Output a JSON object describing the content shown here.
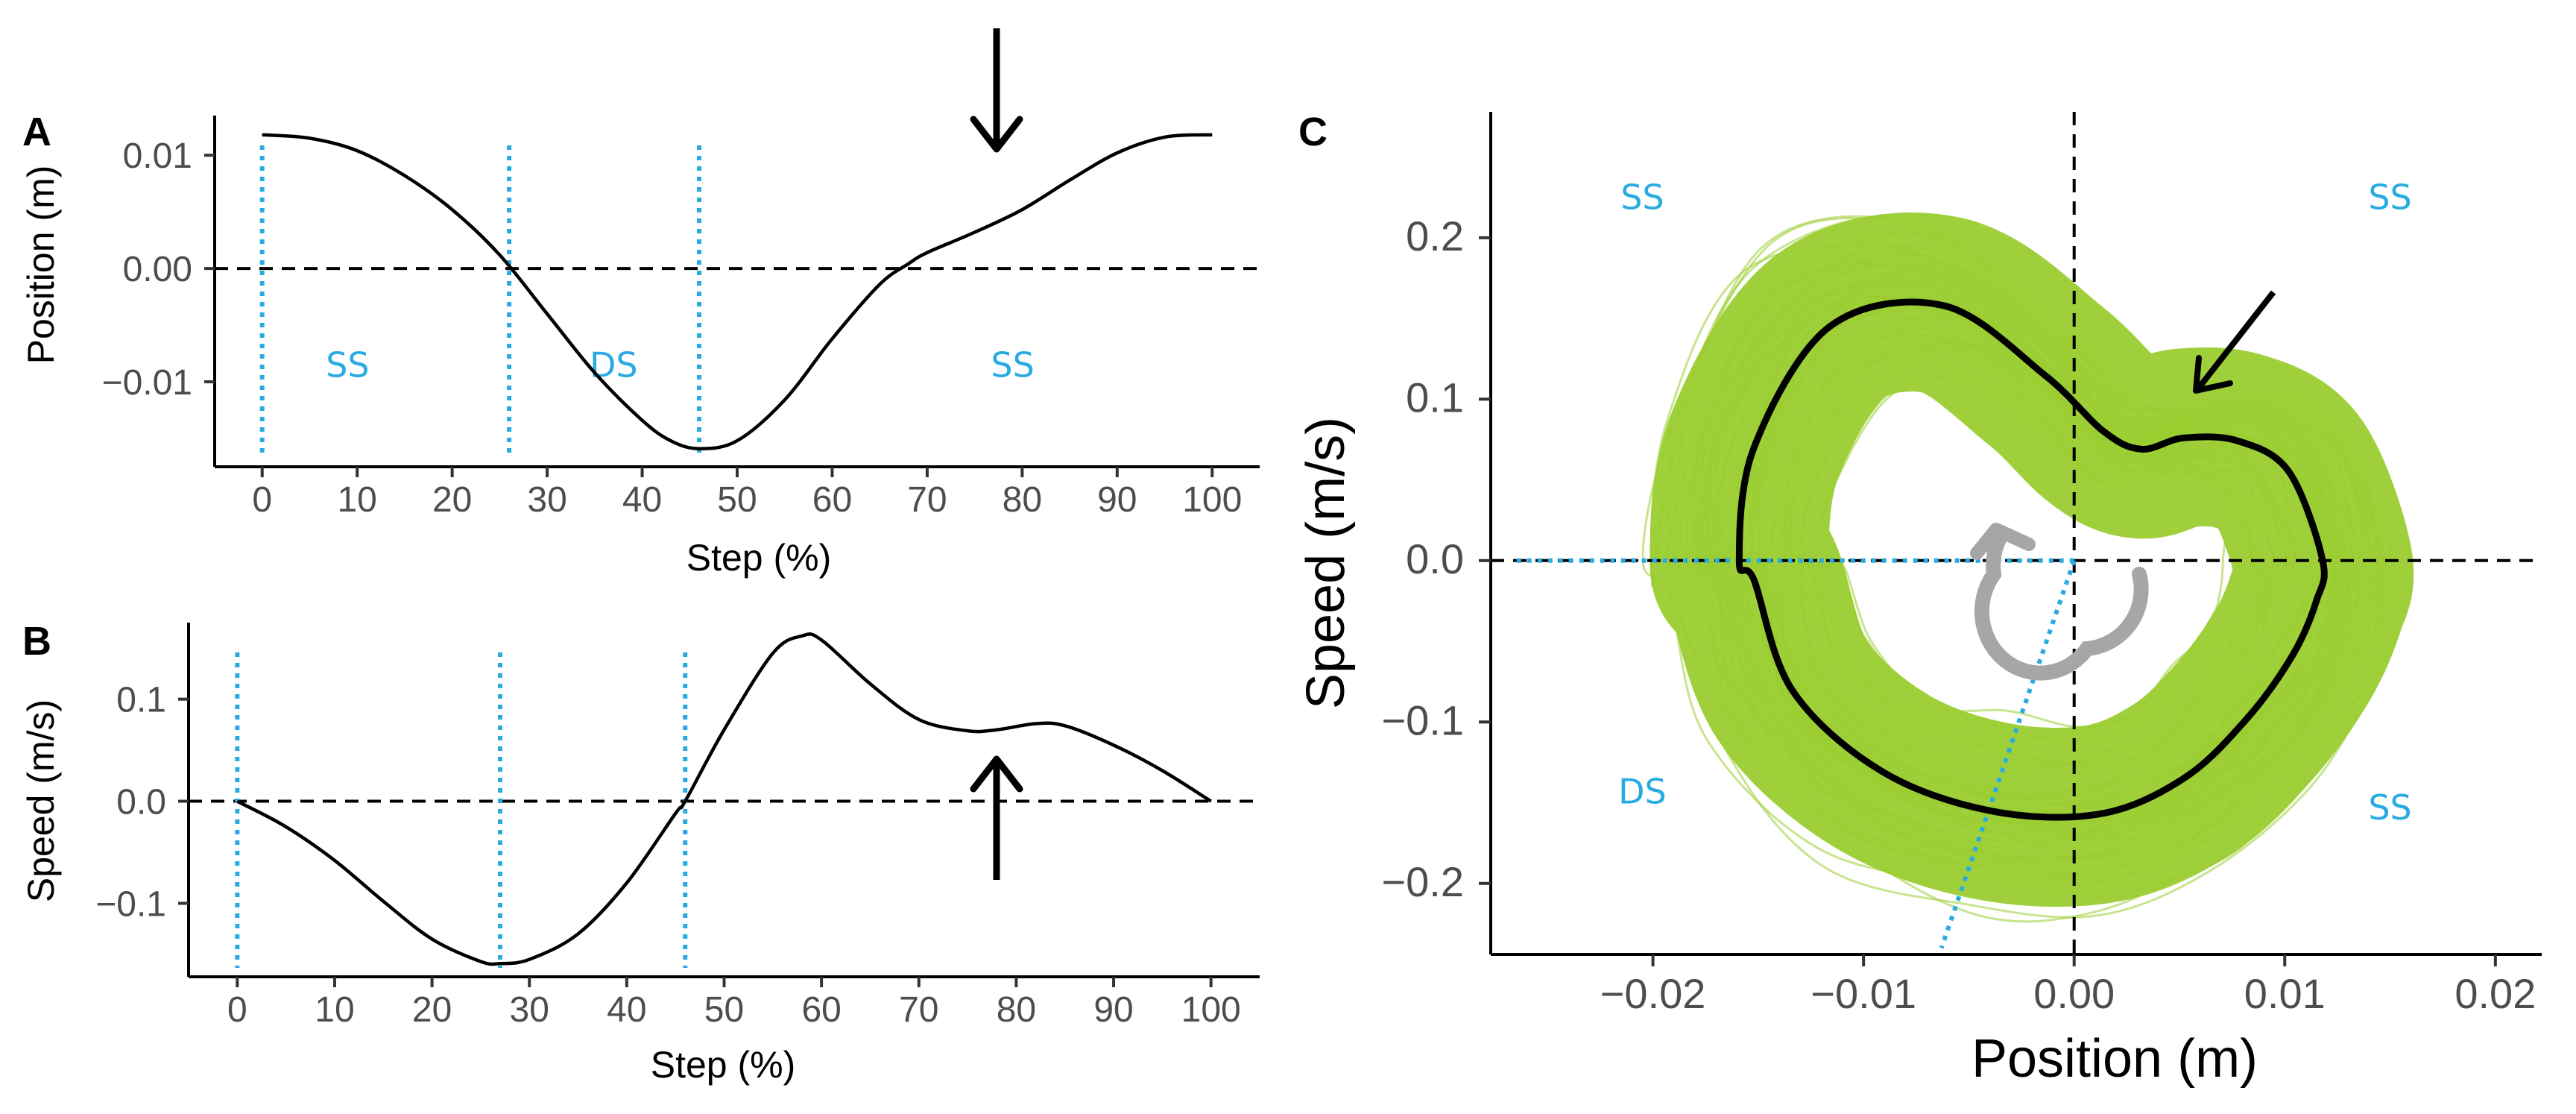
{
  "panels": {
    "A": {
      "letter": "A",
      "xlabel": "Step (%)",
      "ylabel": "Position (m)",
      "x_ticks": [
        "0",
        "10",
        "20",
        "30",
        "40",
        "50",
        "60",
        "70",
        "80",
        "90",
        "100"
      ],
      "y_ticks": [
        "0.01",
        "0.00",
        "−0.01"
      ],
      "phases": [
        "SS",
        "DS",
        "SS"
      ]
    },
    "B": {
      "letter": "B",
      "xlabel": "Step (%)",
      "ylabel": "Speed (m/s)",
      "x_ticks": [
        "0",
        "10",
        "20",
        "30",
        "40",
        "50",
        "60",
        "70",
        "80",
        "90",
        "100"
      ],
      "y_ticks": [
        "0.1",
        "0.0",
        "−0.1"
      ]
    },
    "C": {
      "letter": "C",
      "xlabel": "Position (m)",
      "ylabel": "Speed (m/s)",
      "x_ticks": [
        "−0.02",
        "−0.01",
        "0.00",
        "0.01",
        "0.02"
      ],
      "y_ticks": [
        "0.2",
        "0.1",
        "0.0",
        "−0.1",
        "−0.2"
      ],
      "quadrant_labels": [
        "SS",
        "SS",
        "DS",
        "SS"
      ]
    }
  },
  "colors": {
    "phase_line": "#29ABE2",
    "trials": "#9ACD32",
    "mean": "#000000",
    "rotation_arrow": "#A6A6A6"
  },
  "chart_data": [
    {
      "id": "A",
      "type": "line",
      "title": "",
      "xlabel": "Step (%)",
      "ylabel": "Position (m)",
      "xlim": [
        -5,
        105
      ],
      "ylim": [
        -0.0175,
        0.0135
      ],
      "x": [
        0,
        5,
        10,
        15,
        20,
        25,
        30,
        35,
        40,
        43,
        46,
        50,
        55,
        60,
        65,
        68,
        70,
        75,
        80,
        85,
        90,
        95,
        100
      ],
      "y": [
        0.0118,
        0.0115,
        0.0104,
        0.0082,
        0.0052,
        0.0012,
        -0.004,
        -0.0092,
        -0.0134,
        -0.0152,
        -0.0159,
        -0.0152,
        -0.0116,
        -0.0062,
        -0.0014,
        0.0004,
        0.0014,
        0.0032,
        0.0052,
        0.0078,
        0.0102,
        0.0116,
        0.0118
      ],
      "phase_boundaries": [
        0,
        26,
        46
      ],
      "phase_labels": [
        {
          "text": "SS",
          "x": 9,
          "y": -0.0085
        },
        {
          "text": "DS",
          "x": 37,
          "y": -0.0085
        },
        {
          "text": "SS",
          "x": 79,
          "y": -0.0085
        }
      ],
      "hline": 0,
      "annotation_arrow": {
        "x": 77,
        "direction": "down"
      }
    },
    {
      "id": "B",
      "type": "line",
      "title": "",
      "xlabel": "Step (%)",
      "ylabel": "Speed (m/s)",
      "xlim": [
        -5,
        105
      ],
      "ylim": [
        -0.172,
        0.175
      ],
      "x": [
        0,
        5,
        10,
        15,
        20,
        25,
        27,
        30,
        35,
        40,
        45,
        46,
        50,
        55,
        58,
        60,
        65,
        70,
        75,
        78,
        82,
        85,
        90,
        95,
        100
      ],
      "y": [
        0.0,
        -0.025,
        -0.058,
        -0.098,
        -0.135,
        -0.157,
        -0.159,
        -0.155,
        -0.13,
        -0.08,
        -0.012,
        0.0,
        0.07,
        0.145,
        0.162,
        0.158,
        0.115,
        0.08,
        0.069,
        0.07,
        0.076,
        0.074,
        0.055,
        0.03,
        0.0
      ],
      "phase_boundaries": [
        0,
        27,
        46
      ],
      "hline": 0,
      "annotation_arrow": {
        "x": 78,
        "direction": "up"
      }
    },
    {
      "id": "C",
      "type": "line",
      "title": "",
      "xlabel": "Position (m)",
      "ylabel": "Speed (m/s)",
      "xlim": [
        -0.0277,
        0.0222
      ],
      "ylim": [
        -0.244,
        0.278
      ],
      "series": [
        {
          "name": "mean",
          "x": [
            0.0118,
            0.0102,
            0.0078,
            0.0052,
            0.0032,
            0.0014,
            -0.0014,
            -0.0062,
            -0.0116,
            -0.0152,
            -0.0159,
            -0.0152,
            -0.0134,
            -0.0092,
            -0.004,
            0.0012,
            0.0052,
            0.0082,
            0.0104,
            0.0115,
            0.0118
          ],
          "y": [
            0.0,
            0.055,
            0.074,
            0.076,
            0.069,
            0.08,
            0.115,
            0.158,
            0.145,
            0.07,
            0.0,
            -0.012,
            -0.08,
            -0.13,
            -0.155,
            -0.157,
            -0.135,
            -0.098,
            -0.058,
            -0.025,
            0.0
          ]
        }
      ],
      "trials": "many overlapping individual step loops (light green)",
      "hline": 0,
      "vline": 0,
      "phase_rays": [
        {
          "from": [
            0.0,
            0.0
          ],
          "to": [
            -0.0265,
            0.0
          ]
        },
        {
          "from": [
            0.0,
            0.0
          ],
          "to": [
            -0.0063,
            -0.24
          ]
        }
      ],
      "quadrant_labels": [
        {
          "text": "SS",
          "x": -0.0205,
          "y": 0.225
        },
        {
          "text": "SS",
          "x": 0.015,
          "y": 0.225
        },
        {
          "text": "DS",
          "x": -0.0205,
          "y": -0.143
        },
        {
          "text": "SS",
          "x": 0.015,
          "y": -0.153
        }
      ],
      "rotation": "clockwise",
      "annotation_arrow": {
        "x": 0.006,
        "y": 0.11,
        "direction": "down-left"
      }
    }
  ]
}
